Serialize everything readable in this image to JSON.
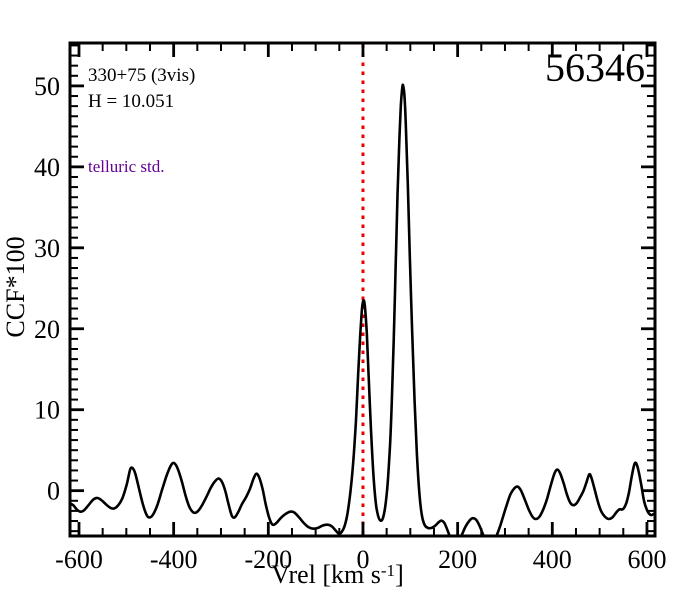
{
  "annotations": {
    "field_label": "330+75 (3vis)",
    "hmag_label": "H = 10.051",
    "telluric_label": "telluric std.",
    "telluric_color": "#660099",
    "star_id": "56346"
  },
  "chart_data": {
    "type": "line",
    "title": "",
    "xlabel_parts": {
      "pre": "Vrel [km s",
      "sup": "-1",
      "post": "]"
    },
    "ylabel": "CCF*100",
    "xlim": [
      -619,
      617
    ],
    "ylim": [
      -5.6,
      55.3
    ],
    "grid": false,
    "legend": null,
    "x_major_ticks": [
      -600,
      -400,
      -200,
      0,
      200,
      400,
      600
    ],
    "x_tick_labels": [
      "-600",
      "-400",
      "-200",
      "0",
      "200",
      "400",
      "600"
    ],
    "x_minor_step": 50,
    "y_major_ticks": [
      0,
      10,
      20,
      30,
      40,
      50
    ],
    "y_tick_labels": [
      "0",
      "10",
      "20",
      "30",
      "40",
      "50"
    ],
    "y_minor_step": 1.25,
    "marker_line": {
      "x": 0,
      "color": "#ee0000",
      "style": "dotted"
    },
    "frame_color": "#000000",
    "peaks": {
      "telluric_peak": {
        "x": 0,
        "y": 23.5
      },
      "main_peak": {
        "x": 85,
        "y": 50.0
      }
    },
    "series": [
      {
        "name": "ccf",
        "color": "#000000",
        "points": [
          [
            -619,
            -1.6
          ],
          [
            -612,
            -1.8
          ],
          [
            -605,
            -2.3
          ],
          [
            -597,
            -2.6
          ],
          [
            -589,
            -2.4
          ],
          [
            -580,
            -1.8
          ],
          [
            -570,
            -1.1
          ],
          [
            -561,
            -0.9
          ],
          [
            -552,
            -1.2
          ],
          [
            -543,
            -1.7
          ],
          [
            -534,
            -2.1
          ],
          [
            -526,
            -2.2
          ],
          [
            -517,
            -1.8
          ],
          [
            -508,
            -0.9
          ],
          [
            -499,
            0.8
          ],
          [
            -492,
            2.6
          ],
          [
            -487,
            2.8
          ],
          [
            -481,
            2.1
          ],
          [
            -473,
            0.2
          ],
          [
            -464,
            -1.9
          ],
          [
            -456,
            -3.1
          ],
          [
            -450,
            -3.3
          ],
          [
            -443,
            -2.9
          ],
          [
            -434,
            -1.7
          ],
          [
            -424,
            0.2
          ],
          [
            -414,
            2.0
          ],
          [
            -405,
            3.2
          ],
          [
            -399,
            3.4
          ],
          [
            -392,
            2.8
          ],
          [
            -383,
            1.2
          ],
          [
            -374,
            -0.8
          ],
          [
            -366,
            -2.1
          ],
          [
            -358,
            -2.7
          ],
          [
            -350,
            -2.6
          ],
          [
            -341,
            -1.9
          ],
          [
            -331,
            -0.8
          ],
          [
            -321,
            0.4
          ],
          [
            -312,
            1.2
          ],
          [
            -305,
            1.5
          ],
          [
            -298,
            1.1
          ],
          [
            -291,
            0.0
          ],
          [
            -284,
            -1.7
          ],
          [
            -277,
            -3.1
          ],
          [
            -271,
            -3.3
          ],
          [
            -264,
            -2.7
          ],
          [
            -256,
            -1.7
          ],
          [
            -247,
            -0.8
          ],
          [
            -239,
            0.2
          ],
          [
            -231,
            1.5
          ],
          [
            -225,
            2.1
          ],
          [
            -219,
            1.6
          ],
          [
            -212,
            0.2
          ],
          [
            -205,
            -1.8
          ],
          [
            -198,
            -3.4
          ],
          [
            -191,
            -4.2
          ],
          [
            -183,
            -4.0
          ],
          [
            -174,
            -3.4
          ],
          [
            -164,
            -2.9
          ],
          [
            -154,
            -2.6
          ],
          [
            -145,
            -2.7
          ],
          [
            -135,
            -3.3
          ],
          [
            -125,
            -4.0
          ],
          [
            -115,
            -4.5
          ],
          [
            -105,
            -4.7
          ],
          [
            -95,
            -4.6
          ],
          [
            -85,
            -4.3
          ],
          [
            -75,
            -4.2
          ],
          [
            -66,
            -4.4
          ],
          [
            -58,
            -4.9
          ],
          [
            -51,
            -5.3
          ],
          [
            -45,
            -5.1
          ],
          [
            -39,
            -4.4
          ],
          [
            -33,
            -2.9
          ],
          [
            -27,
            -0.4
          ],
          [
            -21,
            3.2
          ],
          [
            -15,
            8.5
          ],
          [
            -10,
            14.5
          ],
          [
            -6,
            19.0
          ],
          [
            -2,
            22.5
          ],
          [
            1,
            23.5
          ],
          [
            4,
            22.8
          ],
          [
            8,
            19.5
          ],
          [
            12,
            14.0
          ],
          [
            17,
            7.5
          ],
          [
            22,
            2.0
          ],
          [
            27,
            -1.5
          ],
          [
            32,
            -3.1
          ],
          [
            37,
            -3.7
          ],
          [
            42,
            -3.4
          ],
          [
            47,
            -2.0
          ],
          [
            52,
            0.8
          ],
          [
            57,
            5.5
          ],
          [
            61,
            11.0
          ],
          [
            65,
            18.5
          ],
          [
            69,
            27.5
          ],
          [
            73,
            36.5
          ],
          [
            77,
            43.5
          ],
          [
            80,
            47.5
          ],
          [
            83,
            49.8
          ],
          [
            85,
            50.0
          ],
          [
            88,
            48.5
          ],
          [
            91,
            44.5
          ],
          [
            95,
            37.5
          ],
          [
            99,
            29.0
          ],
          [
            104,
            19.5
          ],
          [
            109,
            11.0
          ],
          [
            114,
            4.5
          ],
          [
            119,
            -0.2
          ],
          [
            124,
            -2.9
          ],
          [
            130,
            -4.2
          ],
          [
            137,
            -4.6
          ],
          [
            145,
            -4.6
          ],
          [
            153,
            -4.3
          ],
          [
            160,
            -3.9
          ],
          [
            166,
            -3.7
          ],
          [
            172,
            -4.0
          ],
          [
            178,
            -4.8
          ],
          [
            184,
            -5.7
          ],
          [
            191,
            -6.4
          ],
          [
            198,
            -6.6
          ],
          [
            204,
            -6.1
          ],
          [
            210,
            -5.3
          ],
          [
            217,
            -4.4
          ],
          [
            225,
            -3.7
          ],
          [
            232,
            -3.4
          ],
          [
            239,
            -3.6
          ],
          [
            246,
            -4.3
          ],
          [
            253,
            -5.3
          ],
          [
            260,
            -6.1
          ],
          [
            268,
            -6.5
          ],
          [
            275,
            -6.3
          ],
          [
            282,
            -5.6
          ],
          [
            289,
            -4.5
          ],
          [
            296,
            -3.2
          ],
          [
            304,
            -1.7
          ],
          [
            312,
            -0.4
          ],
          [
            320,
            0.3
          ],
          [
            327,
            0.5
          ],
          [
            334,
            0.0
          ],
          [
            342,
            -1.1
          ],
          [
            350,
            -2.3
          ],
          [
            358,
            -3.2
          ],
          [
            365,
            -3.5
          ],
          [
            373,
            -3.2
          ],
          [
            381,
            -2.3
          ],
          [
            389,
            -1.0
          ],
          [
            397,
            0.7
          ],
          [
            405,
            2.2
          ],
          [
            411,
            2.6
          ],
          [
            417,
            2.1
          ],
          [
            424,
            0.9
          ],
          [
            431,
            -0.5
          ],
          [
            438,
            -1.5
          ],
          [
            445,
            -1.8
          ],
          [
            452,
            -1.5
          ],
          [
            459,
            -0.8
          ],
          [
            466,
            0.0
          ],
          [
            472,
            1.0
          ],
          [
            478,
            2.0
          ],
          [
            482,
            1.7
          ],
          [
            488,
            0.5
          ],
          [
            495,
            -1.1
          ],
          [
            503,
            -2.5
          ],
          [
            511,
            -3.2
          ],
          [
            519,
            -3.5
          ],
          [
            527,
            -3.3
          ],
          [
            535,
            -2.7
          ],
          [
            542,
            -2.3
          ],
          [
            549,
            -2.3
          ],
          [
            556,
            -1.6
          ],
          [
            562,
            -0.2
          ],
          [
            568,
            1.8
          ],
          [
            573,
            3.2
          ],
          [
            577,
            3.4
          ],
          [
            582,
            2.5
          ],
          [
            588,
            0.7
          ],
          [
            594,
            -1.3
          ],
          [
            601,
            -2.5
          ],
          [
            608,
            -3.0
          ],
          [
            614,
            -2.9
          ],
          [
            617,
            -2.8
          ]
        ]
      }
    ]
  }
}
